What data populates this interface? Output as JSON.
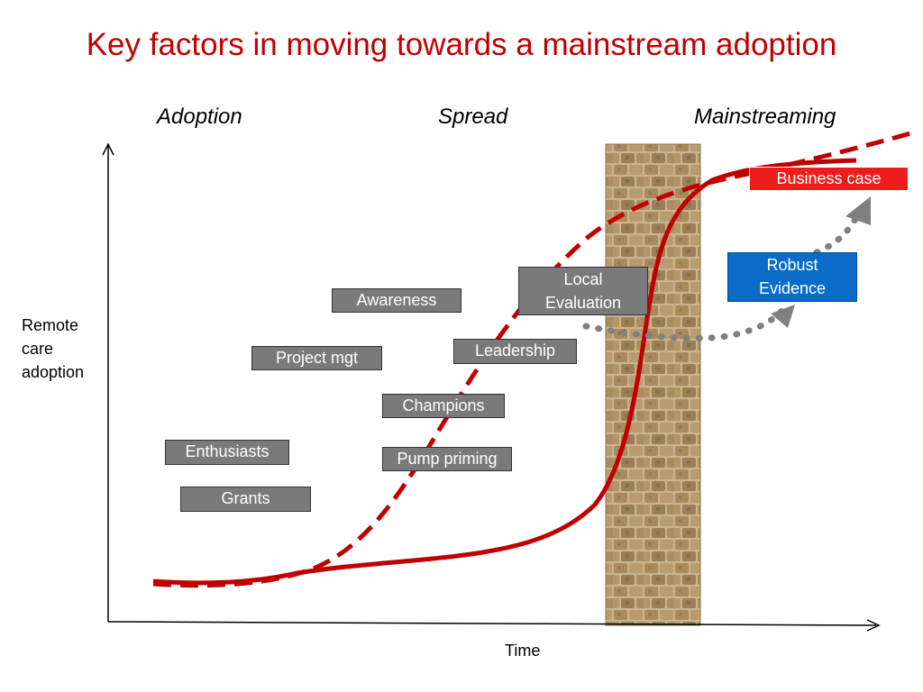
{
  "title": "Key factors in moving towards a mainstream adoption",
  "phases": {
    "adoption": "Adoption",
    "spread": "Spread",
    "mainstreaming": "Mainstreaming"
  },
  "axes": {
    "y_label_lines": [
      "Remote",
      "care",
      "adoption"
    ],
    "x_label": "Time"
  },
  "factors": {
    "awareness": "Awareness",
    "project_mgt": "Project mgt",
    "leadership": "Leadership",
    "champions": "Champions",
    "pump_priming": "Pump priming",
    "enthusiasts": "Enthusiasts",
    "grants": "Grants",
    "local_evaluation_lines": [
      "Local",
      "Evaluation"
    ],
    "robust_evidence_lines": [
      "Robust",
      "Evidence"
    ],
    "business_case": "Business case"
  },
  "colors": {
    "title": "#c00000",
    "curve": "#c00000",
    "factor_box": "#7a7a7a",
    "robust_evidence_box": "#0b6bc9",
    "business_case_box": "#ee1c1c",
    "dotted_path": "#808080",
    "wall": "#b49a6e"
  }
}
